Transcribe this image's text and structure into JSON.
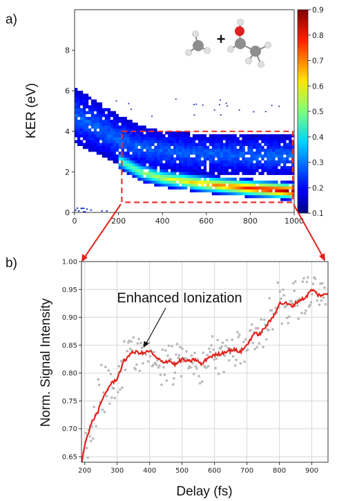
{
  "panel_labels": [
    "a)",
    "b)"
  ],
  "colors": {
    "box_red": "#e8322f",
    "curve_red": "#e3201b",
    "scatter_gray": "#b8b8b8",
    "grid": "#d6d6d6"
  },
  "chart_data": [
    {
      "type": "heatmap",
      "panel": "a)",
      "title": "",
      "xlabel": "",
      "ylabel": "KER (eV)",
      "xlim": [
        0,
        1000
      ],
      "ylim": [
        0,
        10
      ],
      "xticks": [
        0,
        200,
        400,
        600,
        800,
        1000
      ],
      "xtick_labels": [
        "0",
        "200",
        "400",
        "600",
        "800",
        "1000"
      ],
      "yticks": [
        0,
        2,
        4,
        6,
        8
      ],
      "ytick_labels": [
        "0",
        "2",
        "4",
        "6",
        "8"
      ],
      "colormap": "jet",
      "colorbar": {
        "min": 0.1,
        "max": 0.9,
        "ticks": [
          0.1,
          0.2,
          0.3,
          0.4,
          0.5,
          0.6,
          0.7,
          0.8,
          0.9
        ],
        "tick_labels": [
          "0.1",
          "0.2",
          "0.3",
          "0.4",
          "0.5",
          "0.6",
          "0.7",
          "0.8",
          "0.9"
        ]
      },
      "bands": [
        {
          "name": "upper",
          "delay": [
            0,
            100,
            200,
            300,
            400,
            600,
            800,
            1000
          ],
          "ker_center": [
            4.8,
            4.2,
            3.6,
            3.2,
            3.0,
            2.9,
            2.8,
            2.8
          ],
          "ker_width": [
            1.4,
            1.3,
            1.2,
            1.1,
            1.0,
            1.0,
            1.0,
            1.0
          ]
        },
        {
          "name": "lower",
          "delay": [
            200,
            300,
            400,
            600,
            800,
            1000
          ],
          "ker_center": [
            2.6,
            2.0,
            1.7,
            1.4,
            1.2,
            1.05
          ],
          "intensity_max": 0.9
        }
      ],
      "highlight_box": {
        "x": [
          215,
          1000
        ],
        "y": [
          0.5,
          4.0
        ]
      },
      "molecule": {
        "fragments": [
          "CH3",
          "C2H5O"
        ],
        "operator": "+"
      }
    },
    {
      "type": "scatter",
      "panel": "b)",
      "title": "",
      "xlabel": "Delay (fs)",
      "ylabel": "Norm. Signal Intensity",
      "xlim": [
        190,
        950
      ],
      "ylim": [
        0.64,
        1.0
      ],
      "xticks": [
        200,
        300,
        400,
        500,
        600,
        700,
        800,
        900
      ],
      "xtick_labels": [
        "200",
        "300",
        "400",
        "500",
        "600",
        "700",
        "800",
        "900"
      ],
      "yticks": [
        0.65,
        0.7,
        0.75,
        0.8,
        0.85,
        0.9,
        0.95,
        1.0
      ],
      "ytick_labels": [
        "0.65",
        "0.70",
        "0.75",
        "0.80",
        "0.85",
        "0.90",
        "0.95",
        "1.00"
      ],
      "grid": true,
      "series": [
        {
          "style": "line",
          "x": [
            190,
            200,
            220,
            240,
            260,
            280,
            300,
            320,
            340,
            360,
            380,
            400,
            420,
            440,
            460,
            480,
            500,
            520,
            540,
            560,
            580,
            600,
            620,
            640,
            660,
            680,
            700,
            720,
            740,
            760,
            780,
            800,
            820,
            840,
            860,
            880,
            900,
            920,
            940,
            950
          ],
          "y": [
            0.64,
            0.67,
            0.71,
            0.73,
            0.76,
            0.78,
            0.79,
            0.82,
            0.835,
            0.838,
            0.835,
            0.84,
            0.827,
            0.82,
            0.822,
            0.815,
            0.825,
            0.82,
            0.825,
            0.815,
            0.828,
            0.832,
            0.835,
            0.84,
            0.842,
            0.838,
            0.85,
            0.87,
            0.87,
            0.885,
            0.9,
            0.925,
            0.925,
            0.92,
            0.93,
            0.935,
            0.95,
            0.94,
            0.94,
            0.943
          ]
        }
      ],
      "annotations": [
        {
          "text": "Enhanced Ionization",
          "points_to": {
            "x": 385,
            "y": 0.838
          }
        }
      ]
    }
  ]
}
